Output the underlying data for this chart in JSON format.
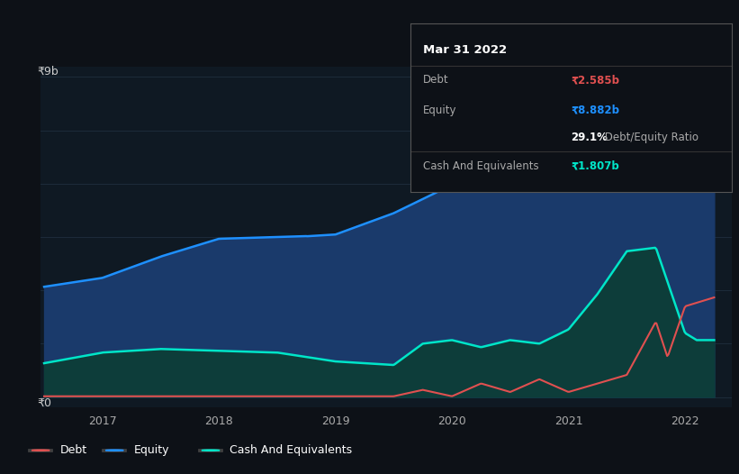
{
  "bg_color": "#0d1117",
  "chart_bg": "#0f1923",
  "grid_color": "#1e2d3d",
  "equity_color": "#1e90ff",
  "equity_fill": "#1a3a6b",
  "cash_color": "#00e5c8",
  "cash_fill": "#0d3d3a",
  "debt_color": "#e05050",
  "y_label_9b": "₹9b",
  "y_label_0": "₹0",
  "x_ticks": [
    2017,
    2018,
    2019,
    2020,
    2021,
    2022
  ],
  "tooltip_title": "Mar 31 2022",
  "tooltip_debt_label": "Debt",
  "tooltip_debt_value": "₹2.585b",
  "tooltip_equity_label": "Equity",
  "tooltip_equity_value": "₹8.882b",
  "tooltip_ratio": "29.1% Debt/Equity Ratio",
  "tooltip_ratio_bold": "29.1%",
  "tooltip_cash_label": "Cash And Equivalents",
  "tooltip_cash_value": "₹1.807b",
  "legend_debt": "Debt",
  "legend_equity": "Equity",
  "legend_cash": "Cash And Equivalents",
  "ymax": 9.0,
  "ymin": -0.3
}
